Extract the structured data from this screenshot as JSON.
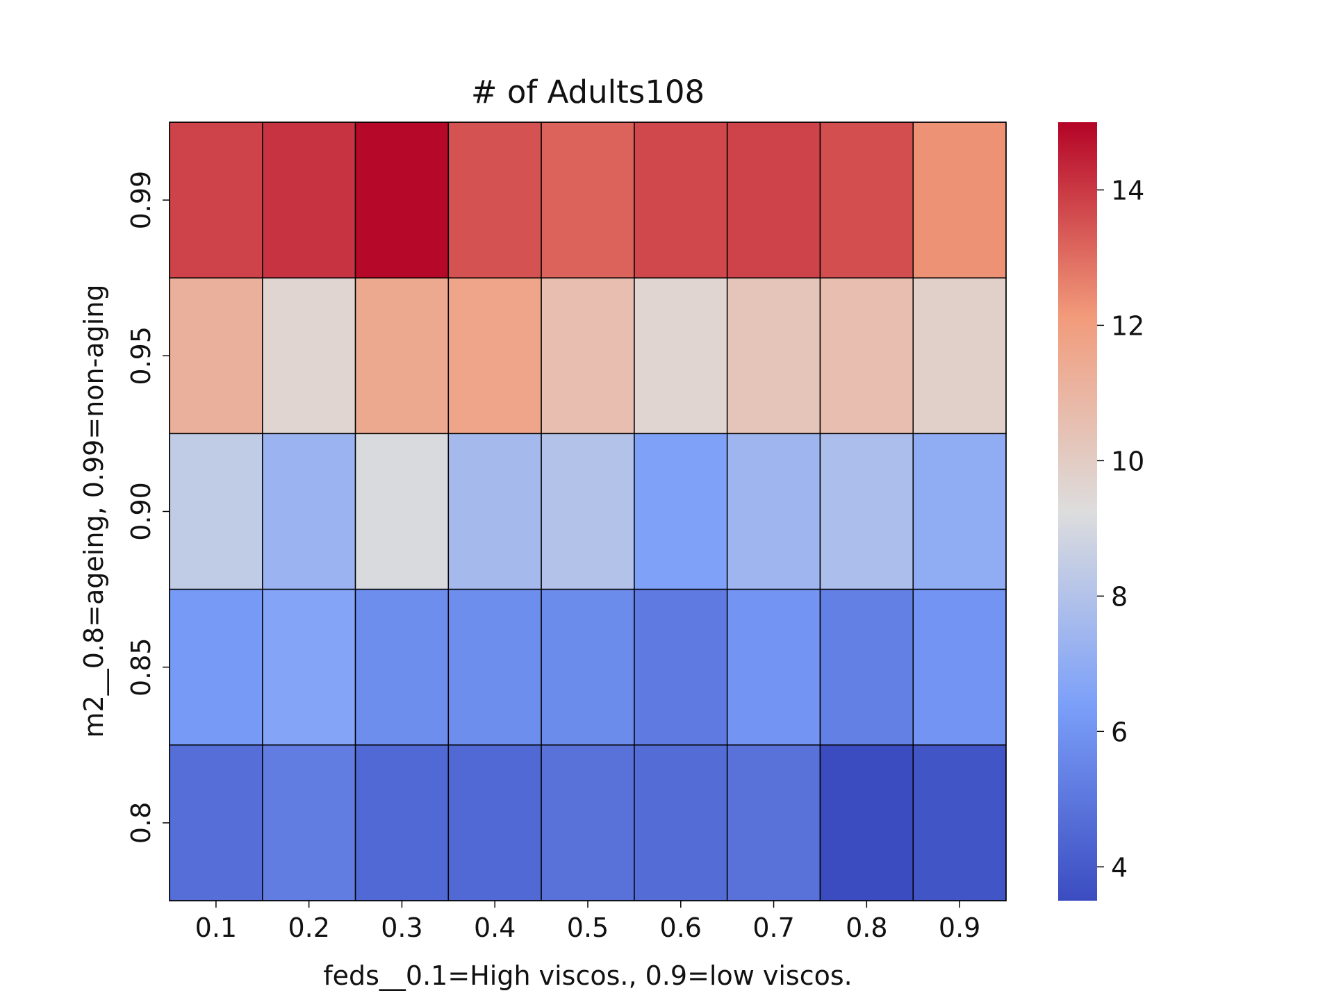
{
  "chart_data": {
    "type": "heatmap",
    "title": "# of Adults108",
    "xlabel": "feds__0.1=High viscos., 0.9=low viscos.",
    "ylabel": "m2__0.8=ageing, 0.99=non-aging",
    "x_categories": [
      "0.1",
      "0.2",
      "0.3",
      "0.4",
      "0.5",
      "0.6",
      "0.7",
      "0.8",
      "0.9"
    ],
    "y_categories": [
      "0.99",
      "0.95",
      "0.90",
      "0.85",
      "0.8"
    ],
    "values": [
      [
        13.8,
        14.1,
        14.9,
        13.5,
        13.2,
        13.7,
        13.8,
        13.6,
        12.3
      ],
      [
        11.2,
        9.6,
        11.5,
        11.7,
        10.6,
        9.6,
        10.3,
        10.6,
        9.8
      ],
      [
        8.4,
        7.3,
        9.1,
        7.6,
        8.0,
        6.5,
        7.4,
        7.8,
        7.0
      ],
      [
        6.2,
        6.6,
        5.8,
        5.8,
        5.7,
        5.1,
        6.0,
        5.3,
        6.0
      ],
      [
        4.7,
        5.2,
        4.5,
        4.5,
        4.8,
        4.6,
        4.8,
        3.5,
        3.8
      ]
    ],
    "vmin": 3.5,
    "vmax": 15.0,
    "colormap": "coolwarm",
    "colorbar_ticks": [
      "4",
      "6",
      "8",
      "10",
      "12",
      "14"
    ],
    "grid": true
  }
}
